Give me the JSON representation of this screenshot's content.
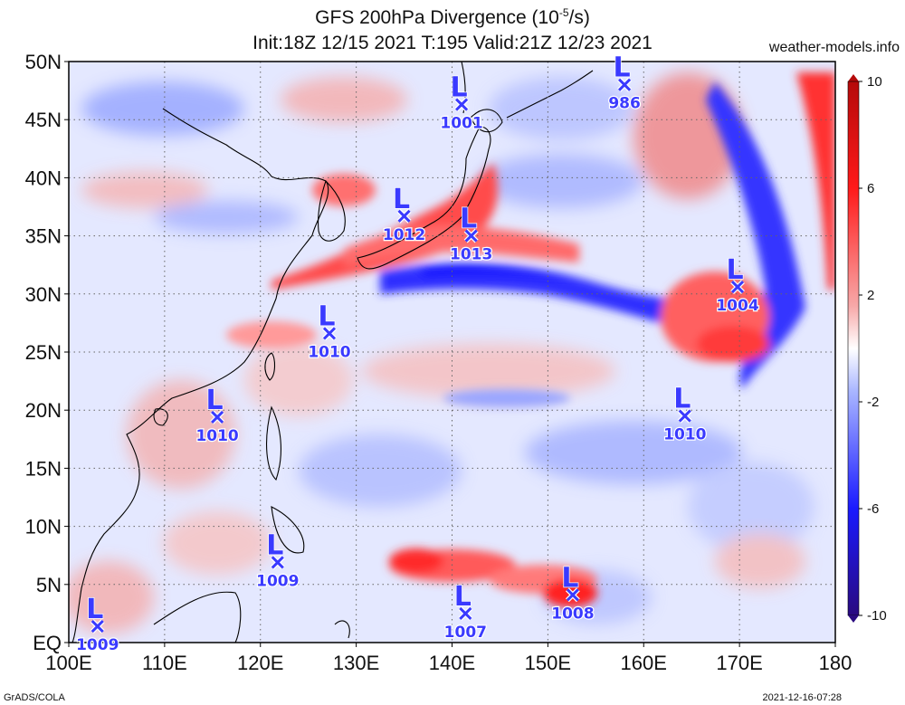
{
  "title": {
    "line1_prefix": "GFS 200hPa Divergence (10",
    "line1_exp": "-5",
    "line1_suffix": "/s)",
    "line2": "Init:18Z 12/15 2021 T:195 Valid:21Z 12/23 2021"
  },
  "site": "weather-models.info",
  "footer": {
    "left": "GrADS/COLA",
    "right": "2021-12-16-07:28"
  },
  "map": {
    "lon_min": 100,
    "lon_max": 180,
    "lat_min": 0,
    "lat_max": 50,
    "lat_labels": [
      "EQ",
      "5N",
      "10N",
      "15N",
      "20N",
      "25N",
      "30N",
      "35N",
      "40N",
      "45N",
      "50N"
    ],
    "lon_labels": [
      "100E",
      "110E",
      "120E",
      "130E",
      "140E",
      "150E",
      "160E",
      "170E",
      "180"
    ],
    "gridlines": "dotted"
  },
  "colorbar": {
    "labels": [
      "10",
      "6",
      "2",
      "-2",
      "-6",
      "-10"
    ],
    "colors": {
      "max": "#b50a0a",
      "strong_pos": "#ff1a1a",
      "weak_pos": "#f7a8a8",
      "neutral": "#ffffff",
      "weak_neg": "#a9b6ff",
      "strong_neg": "#1a1aff",
      "min": "#2a0a80"
    }
  },
  "lows": [
    {
      "symbol": "L",
      "mark": "×",
      "pressure": "1001",
      "lon": 141,
      "lat": 46.3
    },
    {
      "symbol": "L",
      "mark": "×",
      "pressure": "986",
      "lon": 158,
      "lat": 48
    },
    {
      "symbol": "L",
      "mark": "×",
      "pressure": "1012",
      "lon": 135,
      "lat": 36.7
    },
    {
      "symbol": "L",
      "mark": "×",
      "pressure": "1013",
      "lon": 142,
      "lat": 35
    },
    {
      "symbol": "L",
      "mark": "×",
      "pressure": "1004",
      "lon": 169.8,
      "lat": 30.6
    },
    {
      "symbol": "L",
      "mark": "×",
      "pressure": "1010",
      "lon": 127.2,
      "lat": 26.6
    },
    {
      "symbol": "L",
      "mark": "×",
      "pressure": "1010",
      "lon": 115.5,
      "lat": 19.4
    },
    {
      "symbol": "L",
      "mark": "×",
      "pressure": "1010",
      "lon": 164.3,
      "lat": 19.5
    },
    {
      "symbol": "L",
      "mark": "×",
      "pressure": "1009",
      "lon": 121.8,
      "lat": 6.9
    },
    {
      "symbol": "L",
      "mark": "×",
      "pressure": "1007",
      "lon": 141.4,
      "lat": 2.5
    },
    {
      "symbol": "L",
      "mark": "×",
      "pressure": "1008",
      "lon": 152.6,
      "lat": 4.1
    },
    {
      "symbol": "L",
      "mark": "×",
      "pressure": "1009",
      "lon": 103,
      "lat": 1.4
    }
  ]
}
